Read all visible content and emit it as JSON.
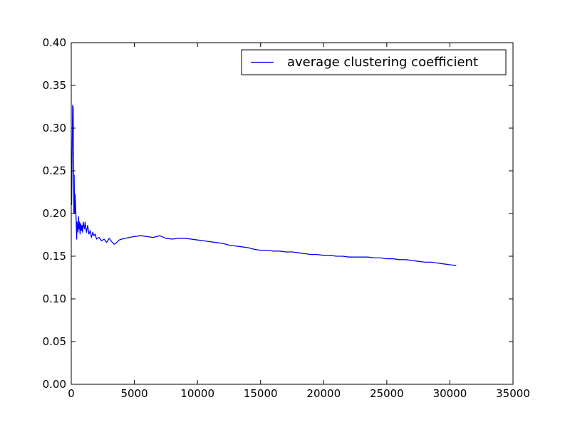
{
  "chart_data": {
    "type": "line",
    "title": "",
    "xlabel": "",
    "ylabel": "",
    "xlim": [
      0,
      35000
    ],
    "ylim": [
      0.0,
      0.4
    ],
    "xticks": [
      0,
      5000,
      10000,
      15000,
      20000,
      25000,
      30000,
      35000
    ],
    "yticks": [
      0.0,
      0.05,
      0.1,
      0.15,
      0.2,
      0.25,
      0.3,
      0.35,
      0.4
    ],
    "xtick_labels": [
      "0",
      "5000",
      "10000",
      "15000",
      "20000",
      "25000",
      "30000",
      "35000"
    ],
    "ytick_labels": [
      "0.00",
      "0.05",
      "0.10",
      "0.15",
      "0.20",
      "0.25",
      "0.30",
      "0.35",
      "0.40"
    ],
    "grid": false,
    "legend_position": "top-right",
    "series": [
      {
        "name": "average clustering coefficient",
        "color": "#0000ff",
        "x": [
          30,
          60,
          90,
          110,
          130,
          150,
          170,
          190,
          210,
          230,
          250,
          280,
          310,
          340,
          370,
          400,
          430,
          460,
          500,
          540,
          580,
          620,
          660,
          700,
          750,
          800,
          850,
          900,
          950,
          1000,
          1050,
          1100,
          1150,
          1200,
          1300,
          1400,
          1500,
          1600,
          1700,
          1800,
          1900,
          2000,
          2200,
          2400,
          2600,
          2800,
          3000,
          3200,
          3400,
          3600,
          3800,
          4000,
          4300,
          4600,
          5000,
          5500,
          6000,
          6500,
          7000,
          7500,
          8000,
          8500,
          9000,
          9500,
          10000,
          10500,
          11000,
          11500,
          12000,
          12500,
          13000,
          13500,
          14000,
          14500,
          15000,
          15500,
          16000,
          16500,
          17000,
          17500,
          18000,
          18500,
          19000,
          19500,
          20000,
          20500,
          21000,
          21500,
          22000,
          22500,
          23000,
          23500,
          24000,
          24500,
          25000,
          25500,
          26000,
          26500,
          27000,
          27500,
          28000,
          28500,
          29000,
          29500,
          30000,
          30500
        ],
        "y": [
          0.21,
          0.26,
          0.3,
          0.327,
          0.3,
          0.325,
          0.28,
          0.23,
          0.2,
          0.245,
          0.22,
          0.2,
          0.222,
          0.21,
          0.2,
          0.186,
          0.17,
          0.19,
          0.183,
          0.178,
          0.196,
          0.182,
          0.19,
          0.176,
          0.188,
          0.18,
          0.186,
          0.178,
          0.19,
          0.185,
          0.182,
          0.19,
          0.184,
          0.178,
          0.186,
          0.176,
          0.18,
          0.172,
          0.178,
          0.174,
          0.176,
          0.17,
          0.172,
          0.168,
          0.17,
          0.166,
          0.171,
          0.167,
          0.164,
          0.166,
          0.169,
          0.17,
          0.171,
          0.172,
          0.173,
          0.174,
          0.173,
          0.172,
          0.174,
          0.171,
          0.17,
          0.171,
          0.171,
          0.17,
          0.169,
          0.168,
          0.167,
          0.166,
          0.165,
          0.163,
          0.162,
          0.161,
          0.16,
          0.158,
          0.157,
          0.157,
          0.156,
          0.156,
          0.155,
          0.155,
          0.154,
          0.153,
          0.152,
          0.152,
          0.151,
          0.151,
          0.15,
          0.15,
          0.149,
          0.149,
          0.149,
          0.149,
          0.148,
          0.148,
          0.147,
          0.147,
          0.146,
          0.146,
          0.145,
          0.144,
          0.143,
          0.143,
          0.142,
          0.141,
          0.14,
          0.139
        ]
      }
    ]
  }
}
